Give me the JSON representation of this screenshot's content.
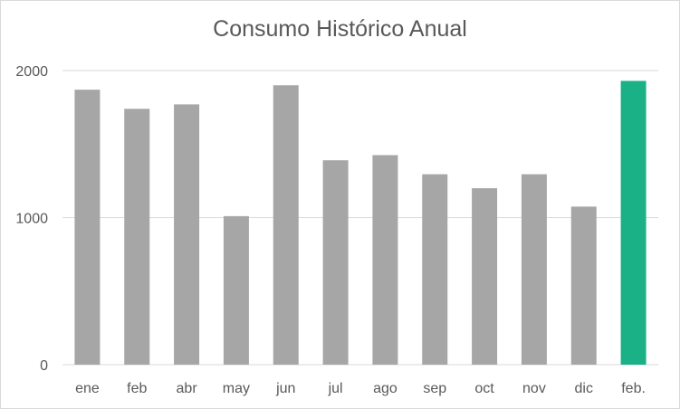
{
  "chart_data": {
    "type": "bar",
    "title": "Consumo Histórico Anual",
    "xlabel": "",
    "ylabel": "",
    "categories": [
      "ene",
      "feb",
      "abr",
      "may",
      "jun",
      "jul",
      "ago",
      "sep",
      "oct",
      "nov",
      "dic",
      "feb."
    ],
    "values": [
      1870,
      1740,
      1770,
      1010,
      1900,
      1390,
      1425,
      1295,
      1200,
      1295,
      1075,
      1930
    ],
    "ylim": [
      0,
      2000
    ],
    "yticks": [
      0,
      1000,
      2000
    ],
    "grid": true,
    "colors": {
      "default_bar": "#a6a6a6",
      "highlight_bar": "#1ab187",
      "gridline": "#d9d9d9",
      "text": "#595959"
    },
    "highlight_index": 11
  }
}
